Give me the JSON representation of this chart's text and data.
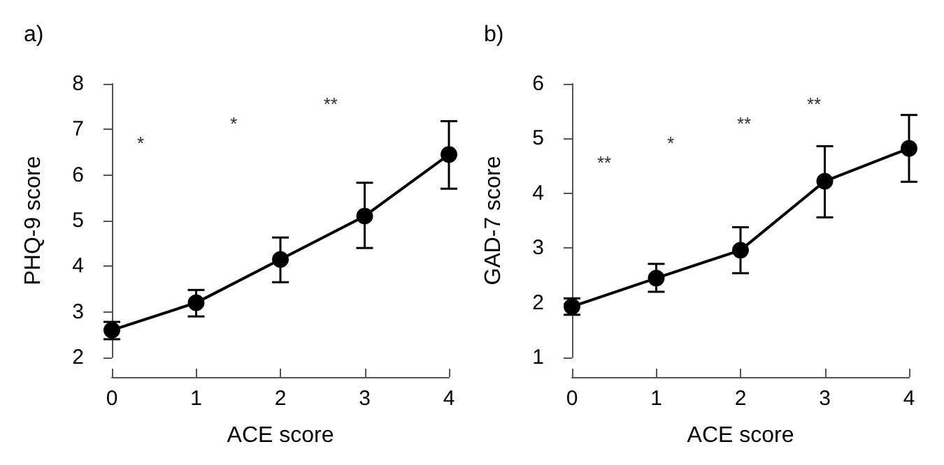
{
  "chart_data": [
    {
      "type": "line",
      "title": "a)",
      "xlabel": "ACE score",
      "ylabel": "PHQ-9 score",
      "x": [
        0,
        1,
        2,
        3,
        4
      ],
      "xlim": [
        0,
        4
      ],
      "xticks": [
        0,
        1,
        2,
        3,
        4
      ],
      "ylim": [
        2,
        8
      ],
      "yticks": [
        2,
        3,
        4,
        5,
        6,
        7,
        8
      ],
      "grid": false,
      "marker": "circle",
      "line_style": "solid",
      "series": [
        {
          "color": "#000000",
          "values": [
            2.6,
            3.2,
            4.15,
            5.1,
            6.45
          ],
          "errors": [
            [
              2.4,
              2.78
            ],
            [
              2.9,
              3.48
            ],
            [
              3.65,
              4.63
            ],
            [
              4.4,
              5.83
            ],
            [
              5.7,
              7.18
            ]
          ]
        }
      ],
      "annotations": [
        "*",
        "*",
        "**"
      ]
    },
    {
      "type": "line",
      "title": "b)",
      "xlabel": "ACE score",
      "ylabel": "GAD-7 score",
      "x": [
        0,
        1,
        2,
        3,
        4
      ],
      "xlim": [
        0,
        4
      ],
      "xticks": [
        0,
        1,
        2,
        3,
        4
      ],
      "ylim": [
        1,
        6
      ],
      "yticks": [
        1,
        2,
        3,
        4,
        5,
        6
      ],
      "grid": false,
      "marker": "circle",
      "line_style": "solid",
      "series": [
        {
          "color": "#000000",
          "values": [
            1.93,
            2.45,
            2.96,
            4.22,
            4.82
          ],
          "errors": [
            [
              1.78,
              2.08
            ],
            [
              2.2,
              2.71
            ],
            [
              2.54,
              3.38
            ],
            [
              3.56,
              4.86
            ],
            [
              4.21,
              5.43
            ]
          ]
        }
      ],
      "annotations": [
        "**",
        "*",
        "**",
        "**"
      ]
    }
  ]
}
